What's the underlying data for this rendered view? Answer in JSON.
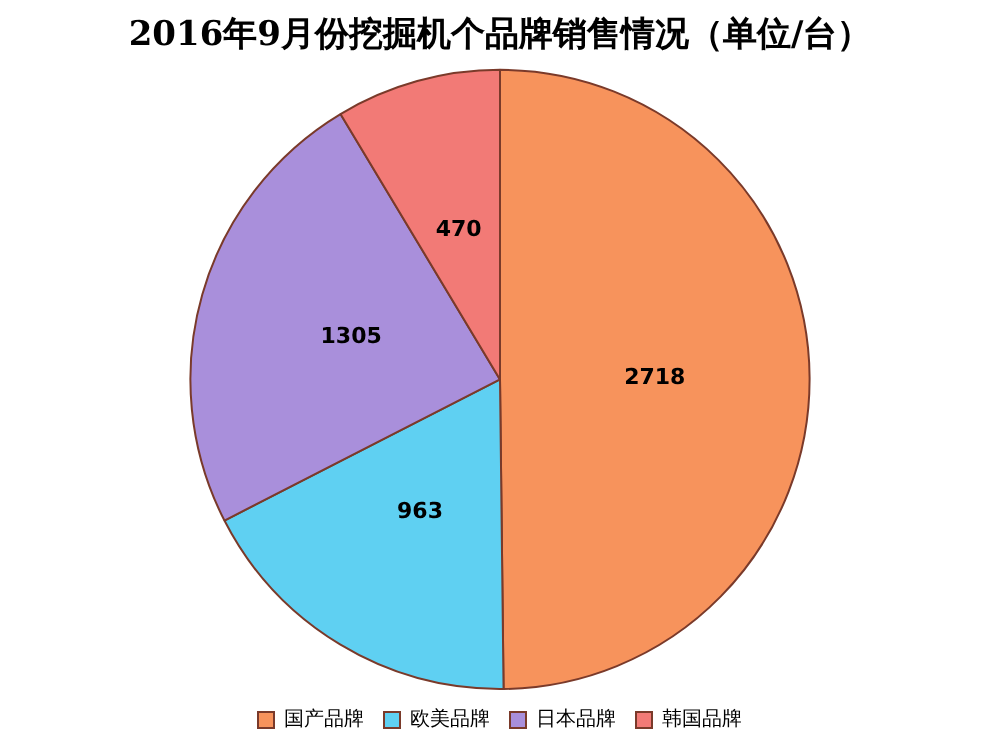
{
  "chart_data": {
    "type": "pie",
    "title": "2016年9月份挖掘机个品牌销售情况（单位/台）",
    "categories": [
      "国产品牌",
      "欧美品牌",
      "日本品牌",
      "韩国品牌"
    ],
    "values": [
      2718,
      963,
      1305,
      470
    ],
    "colors": [
      "#f7935c",
      "#5fd0f2",
      "#a98fdb",
      "#f27a76"
    ],
    "data_labels": true,
    "legend": "bottom"
  }
}
